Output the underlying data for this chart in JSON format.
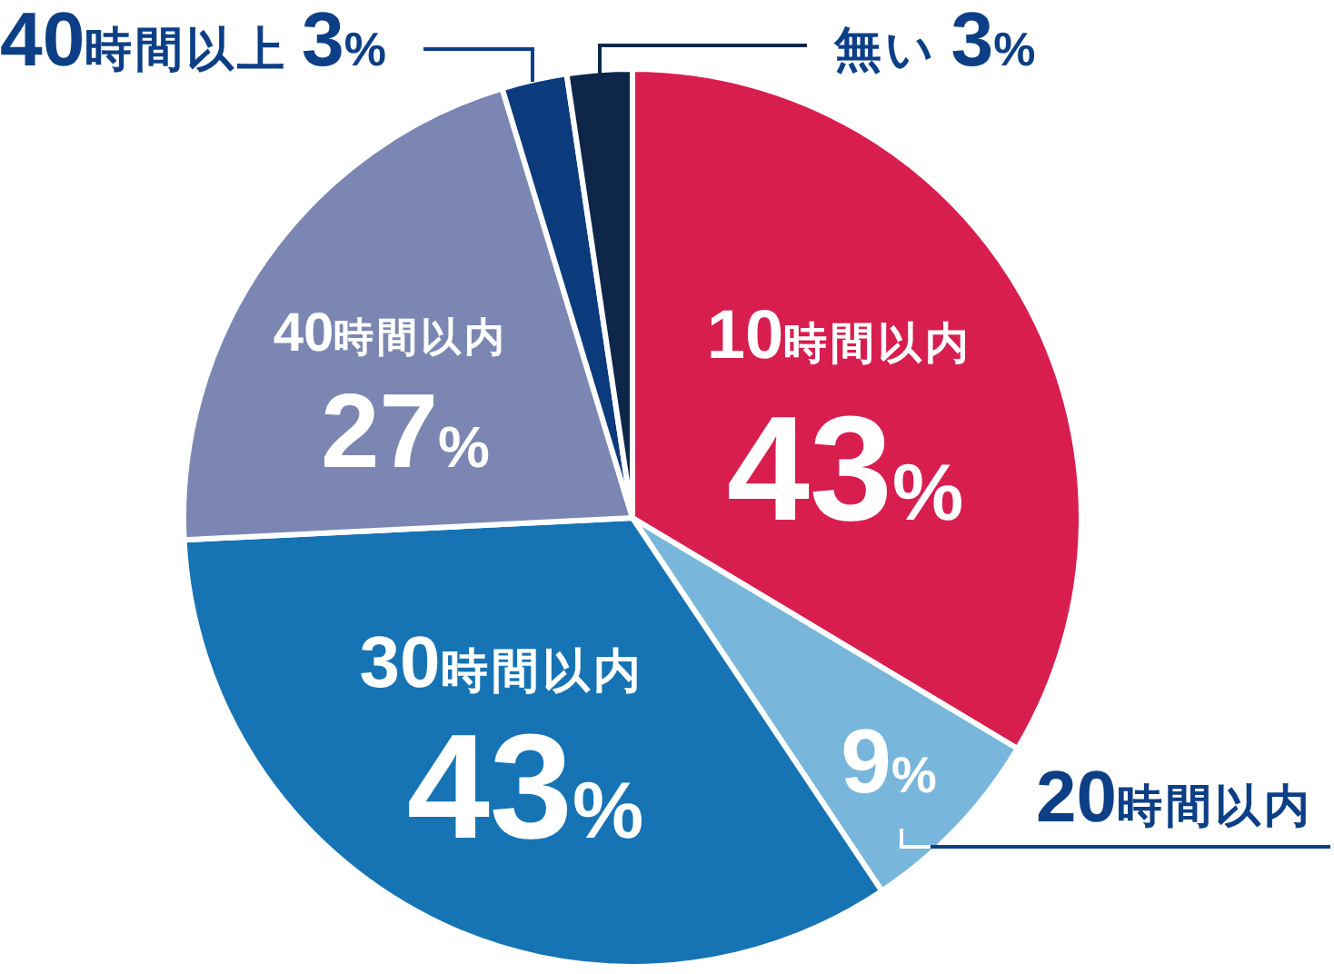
{
  "chart_data": {
    "type": "pie",
    "categories": [
      "10時間以内",
      "20時間以内",
      "30時間以内",
      "40時間以内",
      "40時間以上",
      "無い"
    ],
    "values": [
      43,
      9,
      43,
      27,
      3,
      3
    ],
    "value_labels": [
      "43%",
      "9%",
      "43%",
      "27%",
      "3%",
      "3%"
    ],
    "colors": [
      "#d81e4f",
      "#78b6dc",
      "#1674b5",
      "#7b87b2",
      "#0b3a7d",
      "#0e2749"
    ]
  }
}
